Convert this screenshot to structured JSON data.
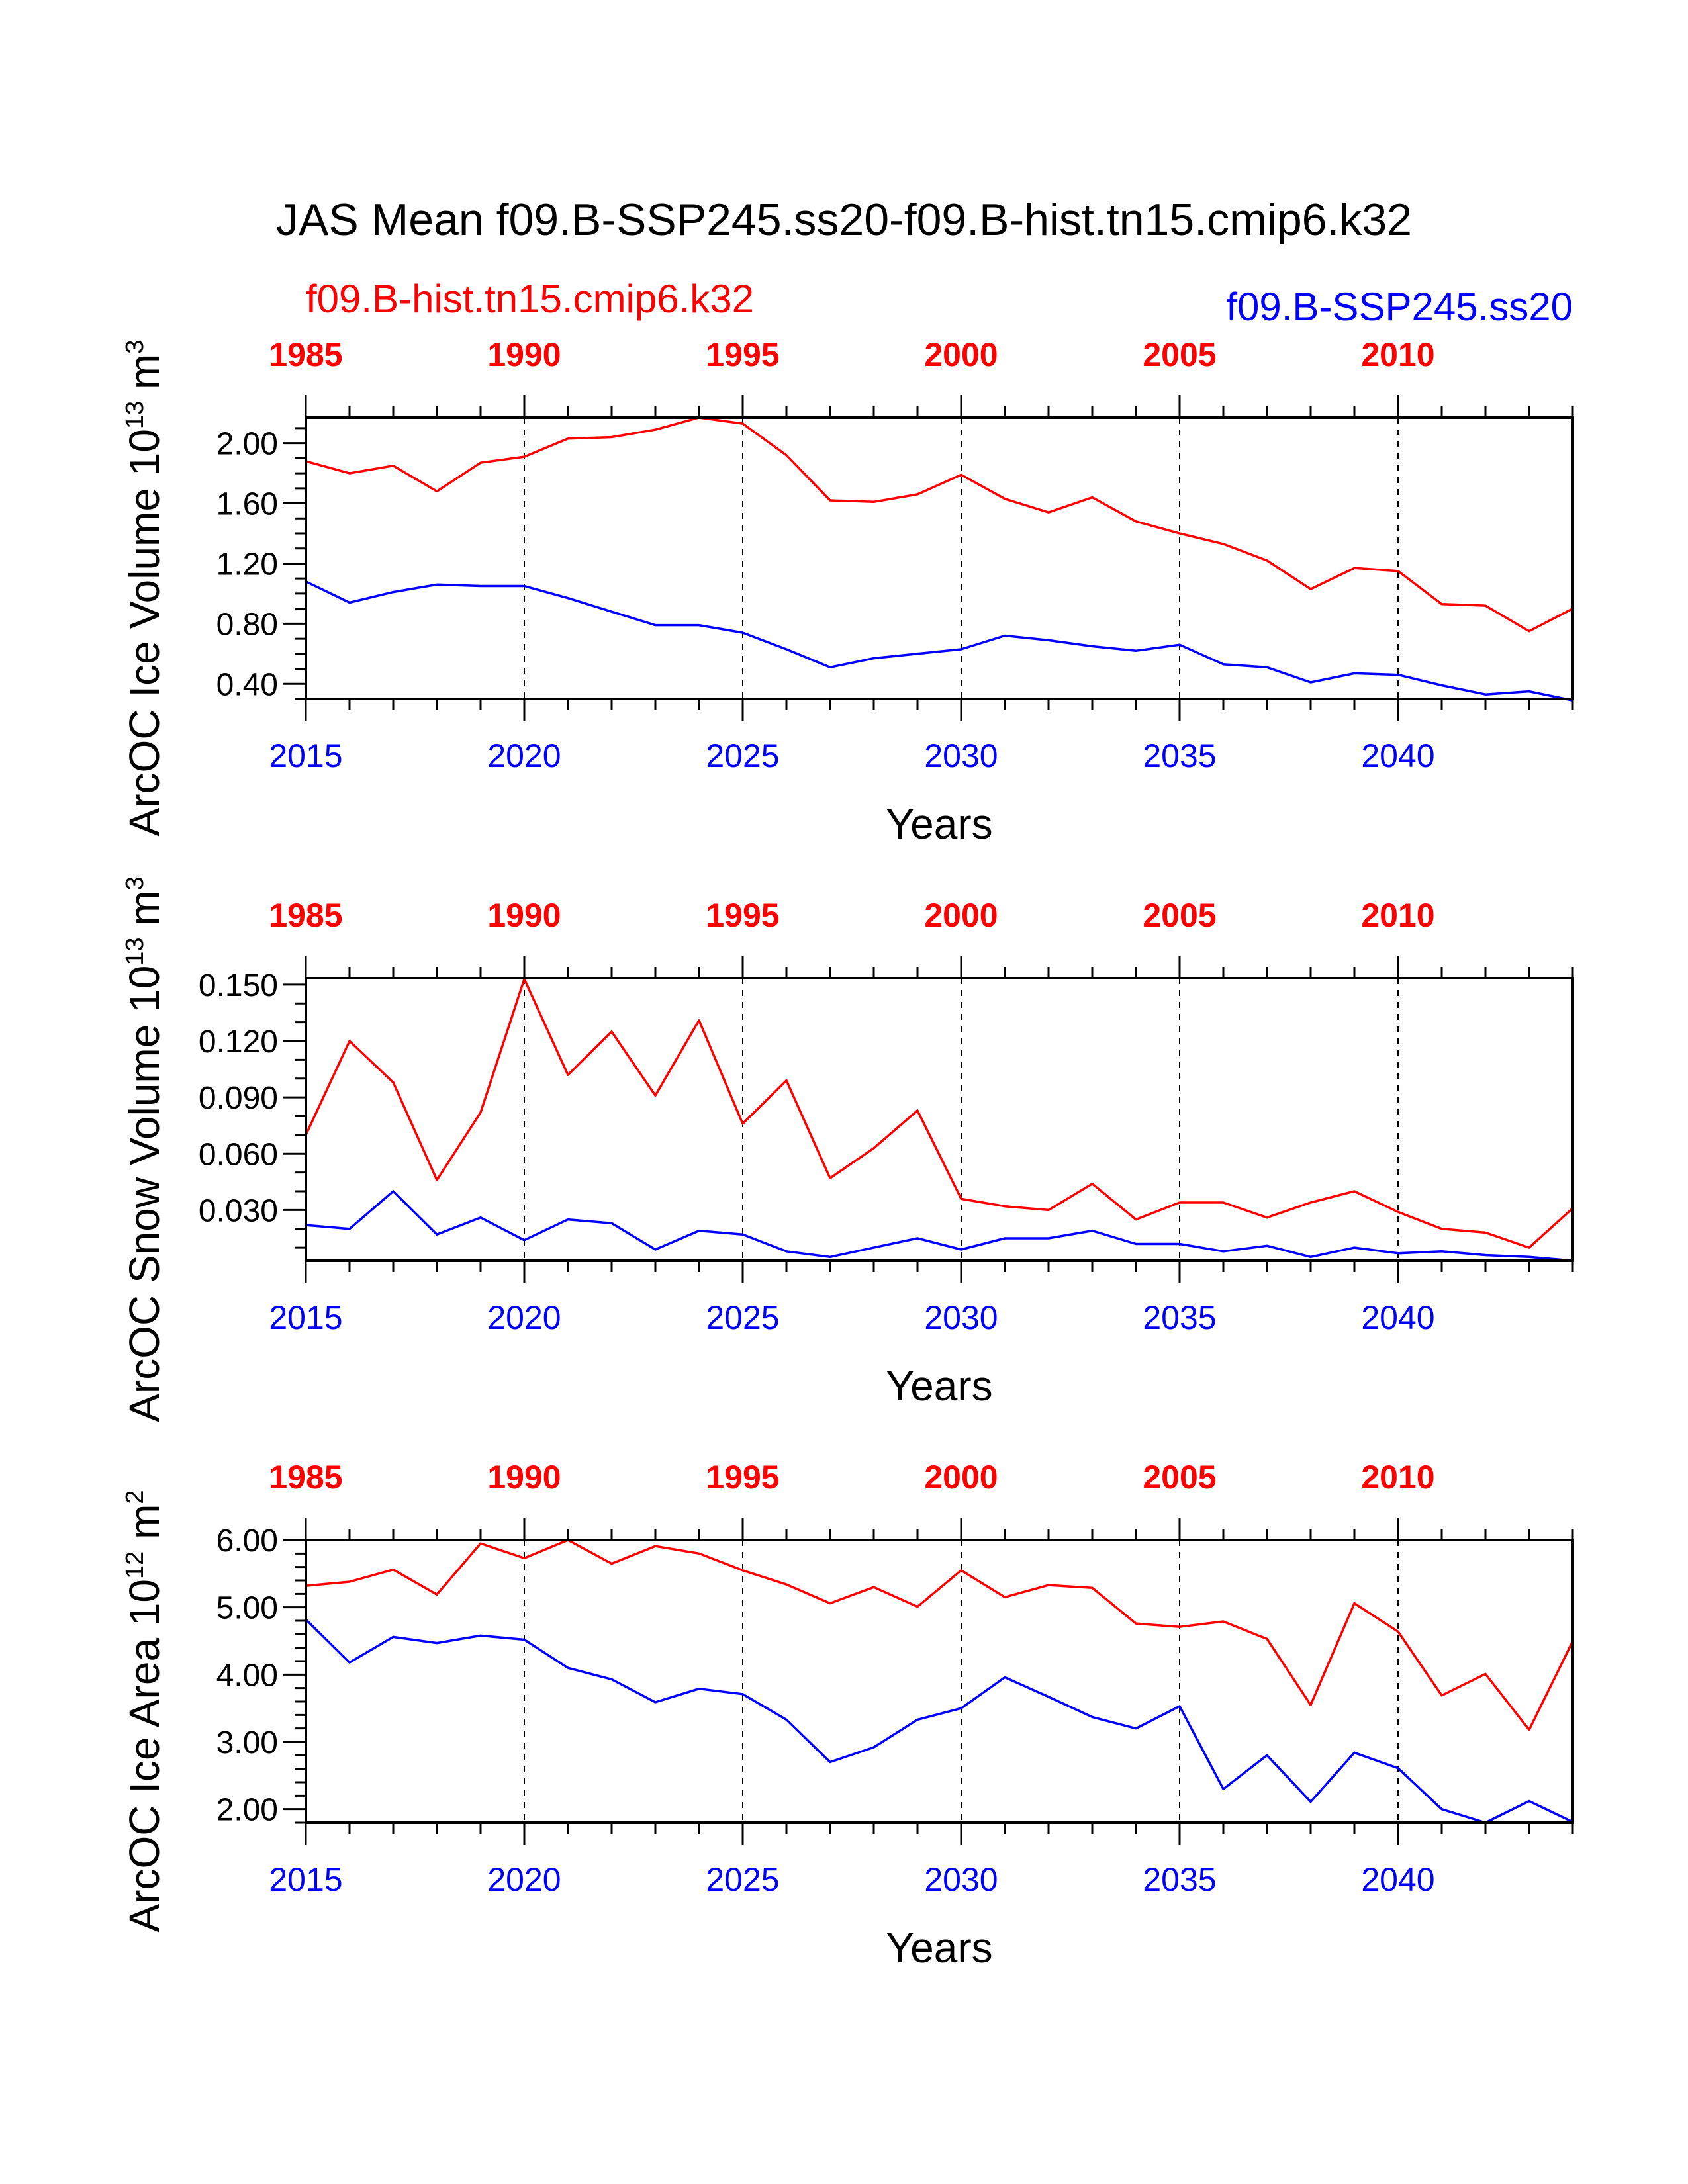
{
  "title": "JAS Mean f09.B-SSP245.ss20-f09.B-hist.tn15.cmip6.k32",
  "legend": {
    "hist_label": "f09.B-hist.tn15.cmip6.k32",
    "ssp_label": "f09.B-SSP245.ss20"
  },
  "colors": {
    "hist": "#ff0000",
    "ssp": "#0000ff",
    "axes": "#000000"
  },
  "chart_data": [
    {
      "type": "line",
      "ylabel": "ArcOC Ice Volume 10^13 m^3",
      "ylabel_main": "ArcOC Ice Volume 10",
      "ylabel_exp": "13",
      "ylabel_unit": "m",
      "ylabel_unit_exp": "3",
      "xlabel": "Years",
      "ylim": [
        0.3,
        2.17
      ],
      "yticks": [
        0.4,
        0.8,
        1.2,
        1.6,
        2.0
      ],
      "ytick_labels": [
        "0.40",
        "0.80",
        "1.20",
        "1.60",
        "2.00"
      ],
      "yminor": 0.1,
      "xlim": [
        2015,
        2044
      ],
      "bottom_ticks": [
        2015,
        2020,
        2025,
        2030,
        2035,
        2040
      ],
      "top_ticks": [
        1985,
        1990,
        1995,
        2000,
        2005,
        2010
      ],
      "gridlines": "vertical dashed at major ticks",
      "series": [
        {
          "name": "f09.B-hist.tn15.cmip6.k32",
          "x": [
            1985,
            1986,
            1987,
            1988,
            1989,
            1990,
            1991,
            1992,
            1993,
            1994,
            1995,
            1996,
            1997,
            1998,
            1999,
            2000,
            2001,
            2002,
            2003,
            2004,
            2005,
            2006,
            2007,
            2008,
            2009,
            2010,
            2011,
            2012,
            2013,
            2014
          ],
          "values": [
            1.88,
            1.8,
            1.85,
            1.68,
            1.87,
            1.91,
            2.03,
            2.04,
            2.09,
            2.17,
            2.13,
            1.92,
            1.62,
            1.61,
            1.66,
            1.79,
            1.63,
            1.54,
            1.64,
            1.48,
            1.4,
            1.33,
            1.22,
            1.03,
            1.17,
            1.15,
            0.93,
            0.92,
            0.75,
            0.9
          ]
        },
        {
          "name": "f09.B-SSP245.ss20",
          "x": [
            2015,
            2016,
            2017,
            2018,
            2019,
            2020,
            2021,
            2022,
            2023,
            2024,
            2025,
            2026,
            2027,
            2028,
            2029,
            2030,
            2031,
            2032,
            2033,
            2034,
            2035,
            2036,
            2037,
            2038,
            2039,
            2040,
            2041,
            2042,
            2043,
            2044
          ],
          "values": [
            1.08,
            0.94,
            1.01,
            1.06,
            1.05,
            1.05,
            0.97,
            0.88,
            0.79,
            0.79,
            0.74,
            0.63,
            0.51,
            0.57,
            0.6,
            0.63,
            0.72,
            0.69,
            0.65,
            0.62,
            0.66,
            0.53,
            0.51,
            0.41,
            0.47,
            0.46,
            0.39,
            0.33,
            0.35,
            0.29
          ]
        }
      ]
    },
    {
      "type": "line",
      "ylabel": "ArcOC Snow Volume 10^13 m^3",
      "ylabel_main": "ArcOC Snow Volume 10",
      "ylabel_exp": "13",
      "ylabel_unit": "m",
      "ylabel_unit_exp": "3",
      "xlabel": "Years",
      "ylim": [
        0.003,
        0.1535
      ],
      "yticks": [
        0.03,
        0.06,
        0.09,
        0.12,
        0.15
      ],
      "ytick_labels": [
        "0.030",
        "0.060",
        "0.090",
        "0.120",
        "0.150"
      ],
      "yminor": 0.01,
      "xlim": [
        2015,
        2044
      ],
      "bottom_ticks": [
        2015,
        2020,
        2025,
        2030,
        2035,
        2040
      ],
      "top_ticks": [
        1985,
        1990,
        1995,
        2000,
        2005,
        2010
      ],
      "gridlines": "vertical dashed at major ticks",
      "series": [
        {
          "name": "f09.B-hist.tn15.cmip6.k32",
          "x": [
            1985,
            1986,
            1987,
            1988,
            1989,
            1990,
            1991,
            1992,
            1993,
            1994,
            1995,
            1996,
            1997,
            1998,
            1999,
            2000,
            2001,
            2002,
            2003,
            2004,
            2005,
            2006,
            2007,
            2008,
            2009,
            2010,
            2011,
            2012,
            2013,
            2014
          ],
          "values": [
            0.07,
            0.12,
            0.098,
            0.046,
            0.082,
            0.153,
            0.102,
            0.125,
            0.091,
            0.131,
            0.076,
            0.099,
            0.047,
            0.063,
            0.083,
            0.036,
            0.032,
            0.03,
            0.044,
            0.025,
            0.034,
            0.034,
            0.026,
            0.034,
            0.04,
            0.029,
            0.02,
            0.018,
            0.01,
            0.031
          ]
        },
        {
          "name": "f09.B-SSP245.ss20",
          "x": [
            2015,
            2016,
            2017,
            2018,
            2019,
            2020,
            2021,
            2022,
            2023,
            2024,
            2025,
            2026,
            2027,
            2028,
            2029,
            2030,
            2031,
            2032,
            2033,
            2034,
            2035,
            2036,
            2037,
            2038,
            2039,
            2040,
            2041,
            2042,
            2043,
            2044
          ],
          "values": [
            0.022,
            0.02,
            0.04,
            0.017,
            0.026,
            0.014,
            0.025,
            0.023,
            0.009,
            0.019,
            0.017,
            0.008,
            0.005,
            0.01,
            0.015,
            0.009,
            0.015,
            0.015,
            0.019,
            0.012,
            0.012,
            0.008,
            0.011,
            0.005,
            0.01,
            0.007,
            0.008,
            0.006,
            0.005,
            0.003
          ]
        }
      ]
    },
    {
      "type": "line",
      "ylabel": "ArcOC Ice Area 10^12 m^2",
      "ylabel_main": "ArcOC Ice Area 10",
      "ylabel_exp": "12",
      "ylabel_unit": "m",
      "ylabel_unit_exp": "2",
      "xlabel": "Years",
      "ylim": [
        1.8,
        6.0
      ],
      "yticks": [
        2.0,
        3.0,
        4.0,
        5.0,
        6.0
      ],
      "ytick_labels": [
        "2.00",
        "3.00",
        "4.00",
        "5.00",
        "6.00"
      ],
      "yminor": 0.2,
      "xlim": [
        2015,
        2044
      ],
      "bottom_ticks": [
        2015,
        2020,
        2025,
        2030,
        2035,
        2040
      ],
      "top_ticks": [
        1985,
        1990,
        1995,
        2000,
        2005,
        2010
      ],
      "gridlines": "vertical dashed at major ticks",
      "series": [
        {
          "name": "f09.B-hist.tn15.cmip6.k32",
          "x": [
            1985,
            1986,
            1987,
            1988,
            1989,
            1990,
            1991,
            1992,
            1993,
            1994,
            1995,
            1996,
            1997,
            1998,
            1999,
            2000,
            2001,
            2002,
            2003,
            2004,
            2005,
            2006,
            2007,
            2008,
            2009,
            2010,
            2011,
            2012,
            2013,
            2014
          ],
          "values": [
            5.32,
            5.38,
            5.56,
            5.19,
            5.95,
            5.73,
            6.0,
            5.65,
            5.91,
            5.8,
            5.55,
            5.34,
            5.06,
            5.3,
            5.01,
            5.55,
            5.15,
            5.33,
            5.29,
            4.76,
            4.71,
            4.79,
            4.53,
            3.55,
            5.06,
            4.64,
            3.69,
            4.01,
            3.18,
            4.5
          ]
        },
        {
          "name": "f09.B-SSP245.ss20",
          "x": [
            2015,
            2016,
            2017,
            2018,
            2019,
            2020,
            2021,
            2022,
            2023,
            2024,
            2025,
            2026,
            2027,
            2028,
            2029,
            2030,
            2031,
            2032,
            2033,
            2034,
            2035,
            2036,
            2037,
            2038,
            2039,
            2040,
            2041,
            2042,
            2043,
            2044
          ],
          "values": [
            4.82,
            4.18,
            4.56,
            4.47,
            4.58,
            4.52,
            4.1,
            3.93,
            3.59,
            3.79,
            3.71,
            3.33,
            2.7,
            2.92,
            3.33,
            3.5,
            3.96,
            3.67,
            3.37,
            3.2,
            3.53,
            2.3,
            2.8,
            2.11,
            2.84,
            2.61,
            2.0,
            1.8,
            2.12,
            1.81
          ]
        }
      ]
    }
  ]
}
